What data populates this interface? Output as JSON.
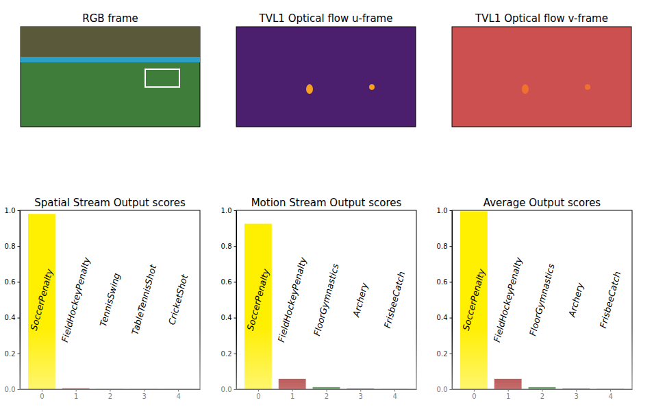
{
  "images": [
    {
      "title": "RGB frame"
    },
    {
      "title": "TVL1 Optical flow u-frame"
    },
    {
      "title": "TVL1 Optical flow v-frame"
    }
  ],
  "chart_data": [
    {
      "type": "bar",
      "title": "Spatial Stream Output scores",
      "x": [
        0,
        1,
        2,
        3,
        4
      ],
      "values": [
        0.98,
        0.005,
        0.001,
        0.0005,
        0.0003
      ],
      "annotations": [
        "SoccerPenalty",
        "FieldHockeyPenalty",
        "TennisSwing",
        "TableTennisShot",
        "CricketShot"
      ],
      "colors": [
        "#ffef00",
        "#990000",
        "#0a6b0a",
        "#00008b",
        "#008080"
      ],
      "xlim": [
        -0.64,
        4.64
      ],
      "xticks": [
        0,
        1,
        2,
        3,
        4
      ],
      "ylim": [
        0,
        1
      ],
      "yticks": [
        {
          "value": 0,
          "label": "0.0"
        },
        0.2,
        0.4,
        0.6,
        0.8,
        {
          "value": 1,
          "label": "1.0"
        }
      ]
    },
    {
      "type": "bar",
      "title": "Motion Stream Output scores",
      "x": [
        0,
        1,
        2,
        3,
        4
      ],
      "values": [
        0.925,
        0.058,
        0.012,
        0.004,
        0.001
      ],
      "annotations": [
        "SoccerPenalty",
        "FieldHockeyPenalty",
        "FloorGymnastics",
        "Archery",
        "FrisbeeCatch"
      ],
      "colors": [
        "#ffef00",
        "#990000",
        "#0a6b0a",
        "#00008b",
        "#008080"
      ],
      "xlim": [
        -0.64,
        4.64
      ],
      "xticks": [
        0,
        1,
        2,
        3,
        4
      ],
      "ylim": [
        0,
        1
      ],
      "yticks": [
        {
          "value": 0,
          "label": "0.0"
        },
        0.2,
        0.4,
        0.6,
        0.8,
        {
          "value": 1,
          "label": "1.0"
        }
      ]
    },
    {
      "type": "bar",
      "title": "Average Output scores",
      "x": [
        0,
        1,
        2,
        3,
        4
      ],
      "values": [
        0.995,
        0.058,
        0.012,
        0.004,
        0.002
      ],
      "annotations": [
        "SoccerPenalty",
        "FieldHockeyPenalty",
        "FloorGymnastics",
        "Archery",
        "FrisbeeCatch"
      ],
      "colors": [
        "#ffef00",
        "#990000",
        "#0a6b0a",
        "#00008b",
        "#008080"
      ],
      "xlim": [
        -0.64,
        4.64
      ],
      "xticks": [
        0,
        1,
        2,
        3,
        4
      ],
      "ylim": [
        0,
        1
      ],
      "yticks": [
        {
          "value": 0,
          "label": "0.0"
        },
        0.2,
        0.4,
        0.6,
        0.8,
        {
          "value": 1,
          "label": "1.0"
        }
      ]
    }
  ]
}
